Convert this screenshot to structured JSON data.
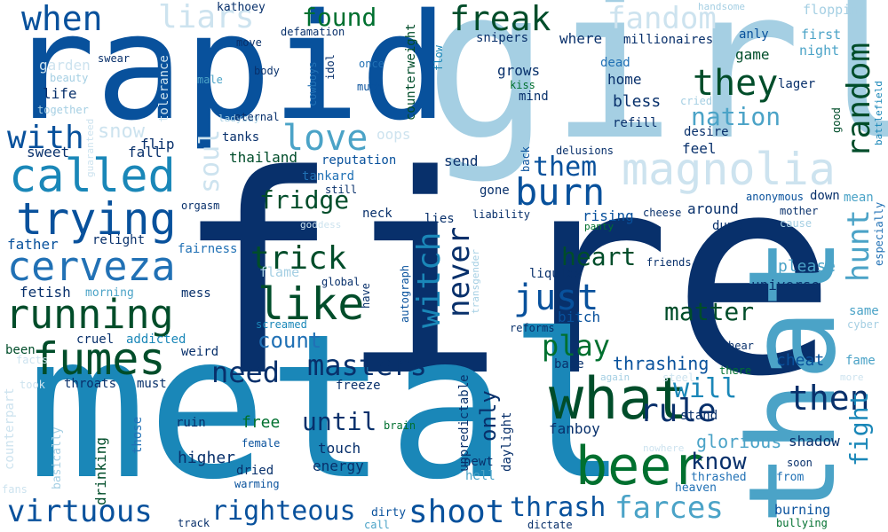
{
  "palette": {
    "navy": "#08306b",
    "blue": "#08519c",
    "mid": "#2171b5",
    "teal": "#1a87b8",
    "sky": "#4ba3c7",
    "light": "#a5cfe3",
    "pale": "#cde3ef",
    "green": "#00702f",
    "dgreen": "#004d2a"
  },
  "words": [
    "fire",
    "girl",
    "metal",
    "rapid",
    "that",
    "beer",
    "what",
    "magnolia",
    "called",
    "trying",
    "cerveza",
    "running",
    "fumes",
    "like",
    "just",
    "burn",
    "love",
    "freak",
    "when",
    "fandom",
    "liars",
    "found",
    "random",
    "they",
    "hunt",
    "with",
    "never",
    "witch",
    "heart",
    "trick",
    "masters",
    "need",
    "then",
    "rule",
    "will",
    "fight",
    "virtuous",
    "righteous",
    "shoot",
    "thrash",
    "farces",
    "play",
    "matter",
    "nation",
    "them",
    "soul",
    "fridge",
    "count",
    "until",
    "only",
    "know",
    "glorious",
    "thrashing",
    "cheat",
    "please",
    "universe",
    "shadow",
    "higher",
    "free",
    "flip",
    "kathoey",
    "flopping",
    "handsome",
    "first",
    "night",
    "anly",
    "game",
    "where",
    "millionaires",
    "snipers",
    "move",
    "defamation",
    "flow",
    "counterweight",
    "cowboys",
    "idol",
    "once",
    "much",
    "body",
    "grows",
    "kiss",
    "mind",
    "dead",
    "home",
    "bless",
    "refill",
    "lager",
    "desire",
    "feel",
    "cried",
    "good",
    "battlefield",
    "swear",
    "male",
    "beauty",
    "garden",
    "life",
    "together",
    "tolerance",
    "guaranteed",
    "ladybay",
    "eternal",
    "snow",
    "tanks",
    "oops",
    "fall",
    "sweet",
    "thailand",
    "reputation",
    "send",
    "back",
    "delusions",
    "anonymous",
    "down",
    "mean",
    "mother",
    "cause",
    "especially",
    "tankard",
    "still",
    "orgasm",
    "neck",
    "lies",
    "gone",
    "liability",
    "rising",
    "cheese",
    "around",
    "goddess",
    "relight",
    "father",
    "fairness",
    "dupe",
    "panty",
    "friends",
    "transgender",
    "flame",
    "autograph",
    "global",
    "liquids",
    "fetish",
    "morning",
    "mess",
    "have",
    "bitch",
    "same",
    "cyber",
    "cruel",
    "addicted",
    "screamed",
    "reforms",
    "been",
    "facts",
    "weird",
    "babe",
    "hear",
    "fame",
    "there",
    "freeze",
    "again",
    "steel",
    "took",
    "throats",
    "must",
    "unpredictable",
    "daylight",
    "stand",
    "counterpart",
    "basically",
    "those",
    "ruin",
    "brain",
    "fanboy",
    "female",
    "touch",
    "energy",
    "dried",
    "warming",
    "newt",
    "hell",
    "nowhere",
    "thrashed",
    "soon",
    "from",
    "drinking",
    "heaven",
    "fans",
    "track",
    "dirty",
    "call",
    "dictate",
    "burning",
    "bullying",
    "more"
  ]
}
